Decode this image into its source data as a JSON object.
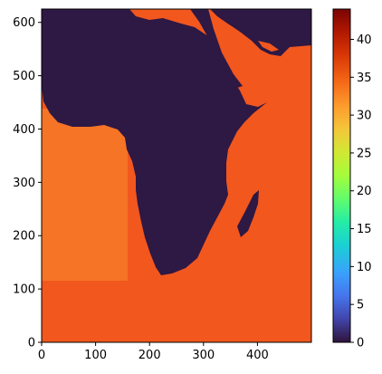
{
  "chart_data": {
    "type": "heatmap",
    "title": "",
    "xlabel": "",
    "ylabel": "",
    "xlim": [
      0,
      500
    ],
    "ylim": [
      0,
      625
    ],
    "x_ticks": [
      0,
      100,
      200,
      300,
      400
    ],
    "y_ticks": [
      0,
      100,
      200,
      300,
      400,
      500,
      600
    ],
    "colorbar": {
      "colormap": "turbo",
      "range": [
        0,
        44
      ],
      "ticks": [
        0,
        5,
        10,
        15,
        20,
        25,
        30,
        35,
        40
      ]
    },
    "regions": [
      {
        "name": "land",
        "value": 0
      },
      {
        "name": "ocean",
        "value": 36
      }
    ],
    "colors": {
      "land": "#2e1844",
      "ocean": "#f2571e",
      "ocean_cool": "#f98d2b"
    }
  }
}
